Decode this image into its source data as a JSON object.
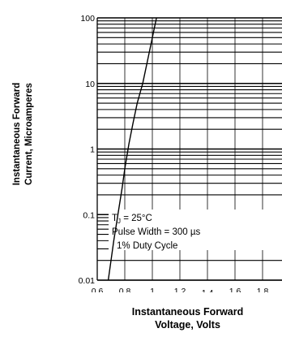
{
  "chart_data": {
    "type": "line",
    "xlabel_lines": [
      "Instantaneous Forward",
      "Voltage, Volts"
    ],
    "ylabel_lines": [
      "Instantaneous Forward",
      "Current, Microamperes"
    ],
    "x_ticks": [
      "0.6",
      "0.8",
      "1",
      "1.2",
      "1.4",
      "1.6",
      "1.8"
    ],
    "y_ticks": [
      "100",
      "10",
      "1",
      "0.1",
      "0.01"
    ],
    "y_scale": "log",
    "xlim": [
      0.6,
      1.8
    ],
    "ylim": [
      0.01,
      100
    ],
    "grid": true,
    "annotation_lines": [
      "T_J = 25°C",
      "Pulse Width = 300 µs",
      "1% Duty Cycle"
    ],
    "series": [
      {
        "x": [
          0.68,
          0.7,
          0.72,
          0.75,
          0.78,
          0.8,
          0.83,
          0.86,
          0.89,
          0.93,
          0.97,
          1.0,
          1.03
        ],
        "y": [
          0.01,
          0.02,
          0.04,
          0.1,
          0.25,
          0.5,
          1.2,
          2.5,
          5,
          10,
          25,
          50,
          100
        ]
      }
    ]
  }
}
